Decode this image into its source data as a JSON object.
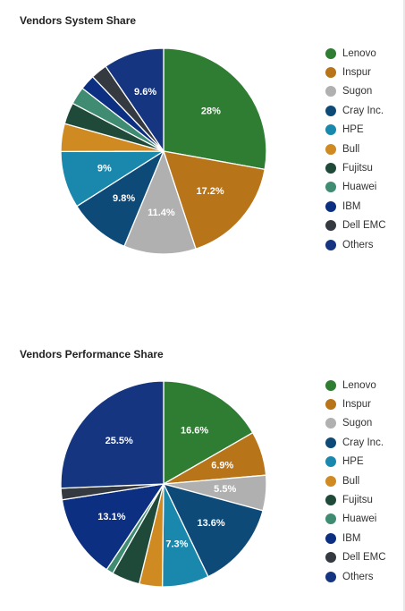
{
  "colors": {
    "Lenovo": "#2e7d32",
    "Inspur": "#b87418",
    "Sugon": "#b0b0b0",
    "Cray Inc.": "#0d4a78",
    "HPE": "#1a88ad",
    "Bull": "#cf8a22",
    "Fujitsu": "#1f4a3a",
    "Huawei": "#3f8c72",
    "IBM": "#0c2f82",
    "Dell EMC": "#343a40",
    "Others": "#153580"
  },
  "chart_data": [
    {
      "type": "pie",
      "title": "Vendors System Share",
      "labels": [
        "Lenovo",
        "Inspur",
        "Sugon",
        "Cray Inc.",
        "HPE",
        "Bull",
        "Fujitsu",
        "Huawei",
        "IBM",
        "Dell EMC",
        "Others"
      ],
      "values": [
        28,
        17.2,
        11.4,
        9.8,
        9,
        4.4,
        3.4,
        2.8,
        2.4,
        2.6,
        9.6
      ],
      "value_labels": [
        "28%",
        "17.2%",
        "11.4%",
        "9.8%",
        "9%",
        "",
        "",
        "",
        "",
        "",
        "9.6%"
      ],
      "legend": "right"
    },
    {
      "type": "pie",
      "title": "Vendors Performance Share",
      "labels": [
        "Lenovo",
        "Inspur",
        "Sugon",
        "Cray Inc.",
        "HPE",
        "Bull",
        "Fujitsu",
        "Huawei",
        "IBM",
        "Dell EMC",
        "Others"
      ],
      "values": [
        16.6,
        6.9,
        5.5,
        13.6,
        7.3,
        3.6,
        4.4,
        1.1,
        13.1,
        1.8,
        25.5
      ],
      "value_labels": [
        "16.6%",
        "6.9%",
        "5.5%",
        "13.6%",
        "7.3%",
        "",
        "",
        "",
        "13.1%",
        "",
        "25.5%"
      ],
      "legend": "right"
    }
  ]
}
